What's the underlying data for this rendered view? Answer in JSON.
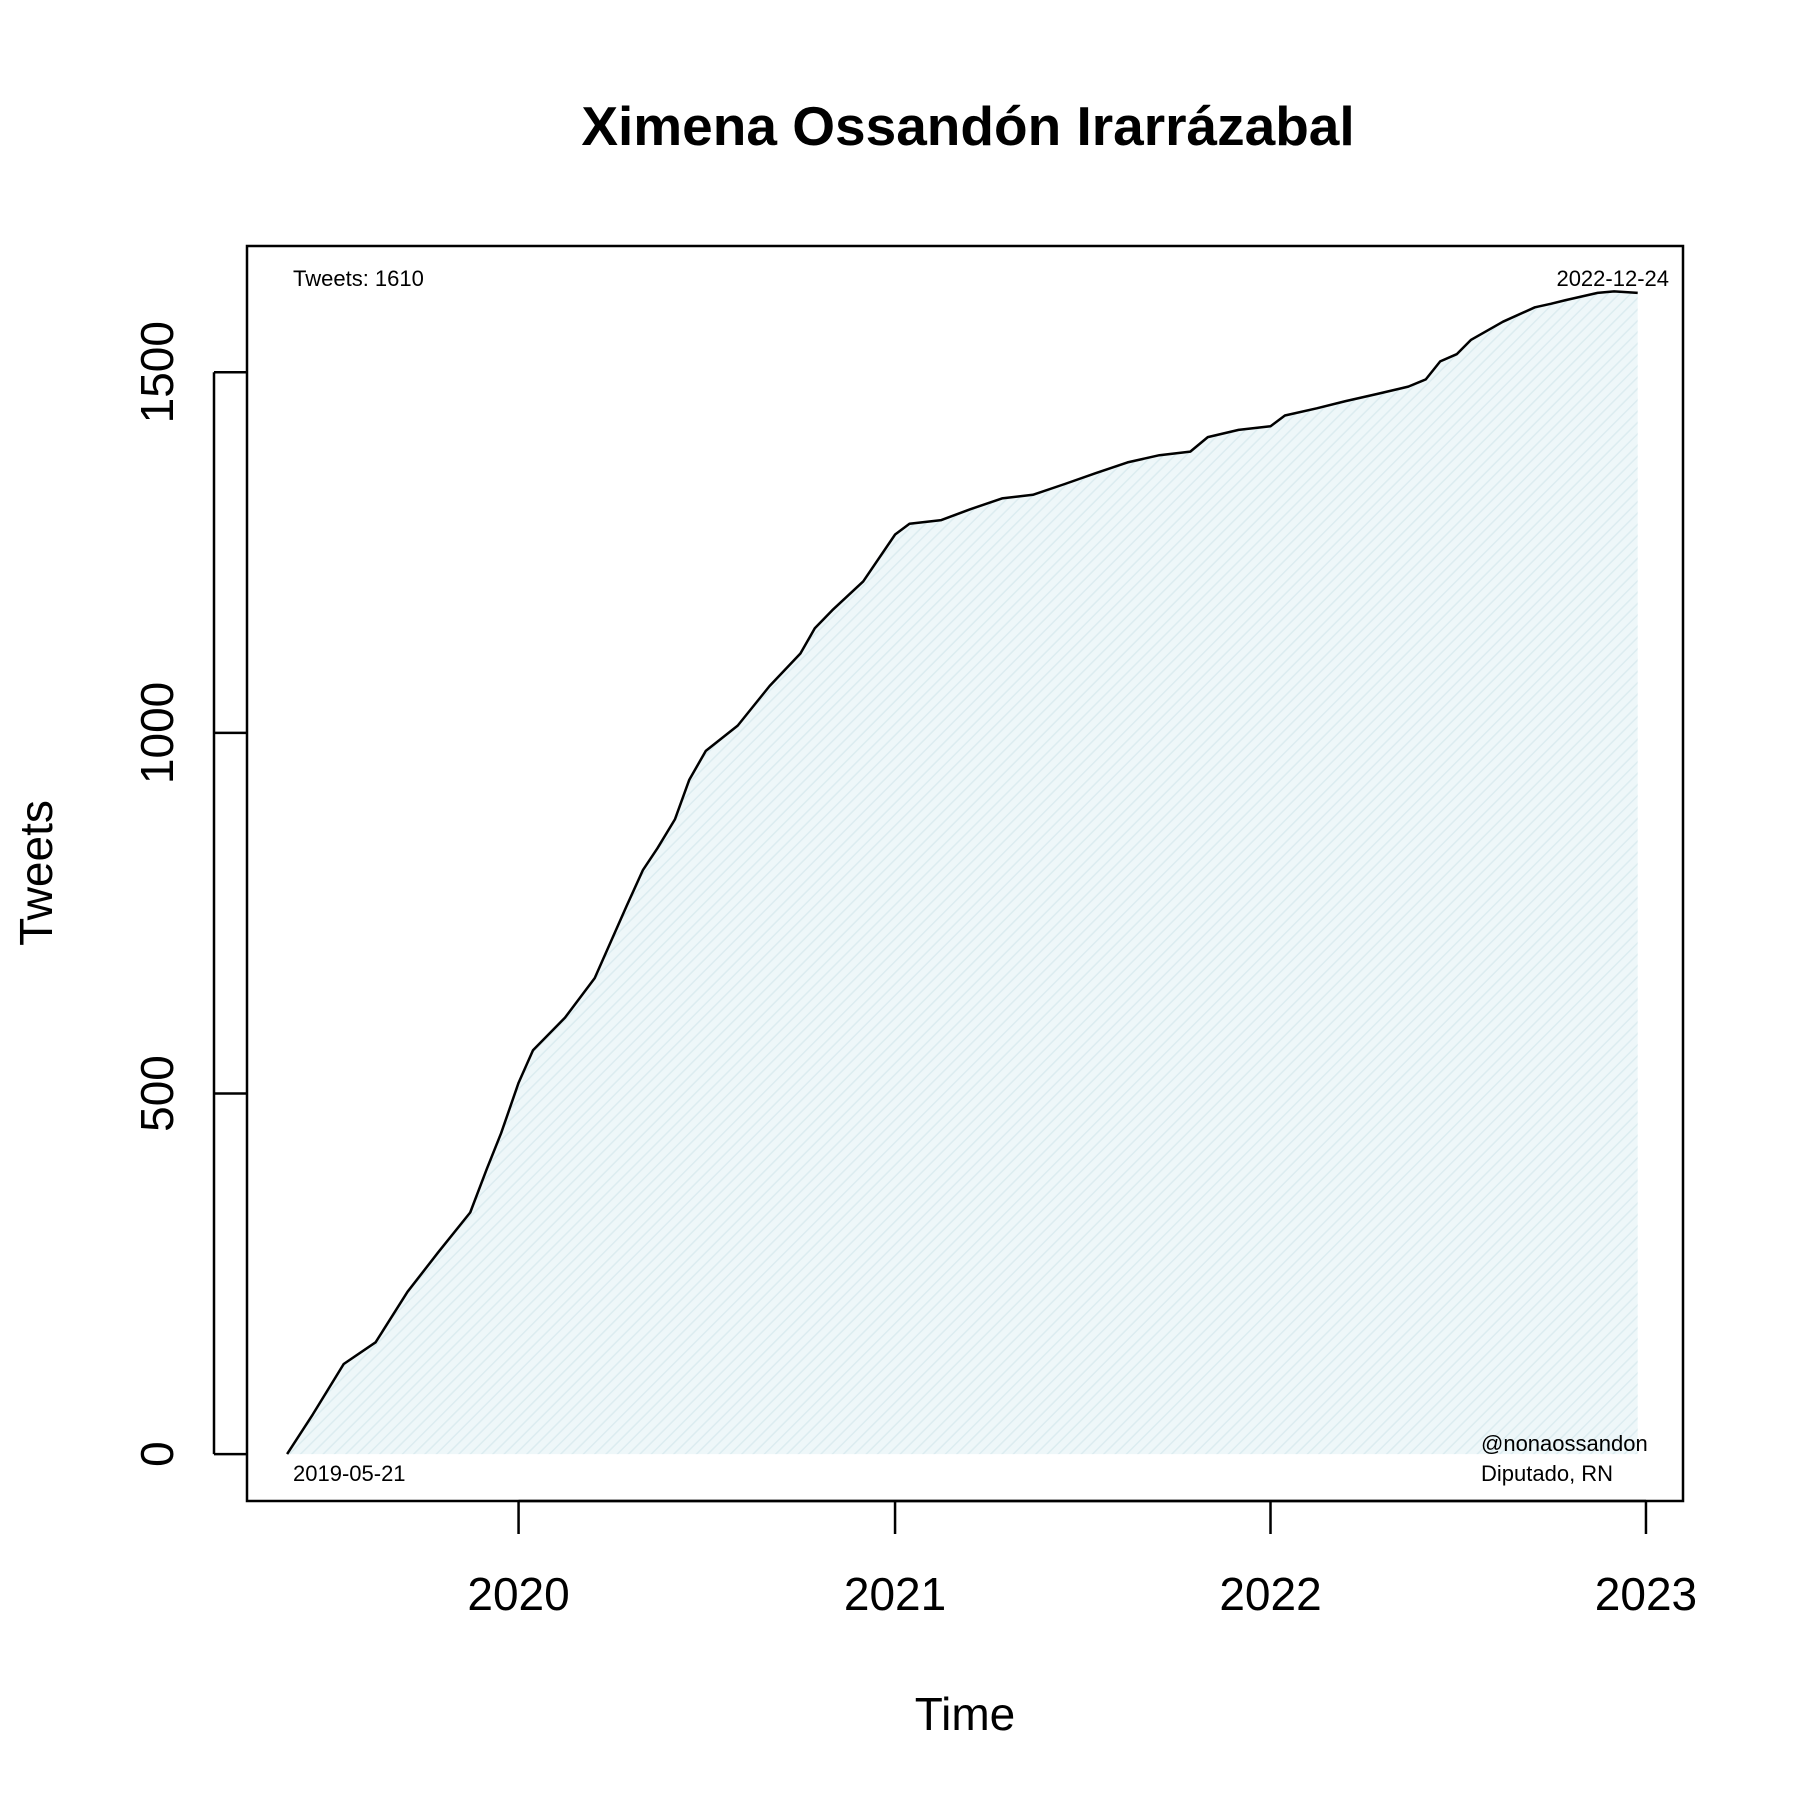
{
  "chart_data": {
    "type": "area",
    "title": "Ximena Ossandón Irarrázabal",
    "xlabel": "Time",
    "ylabel": "Tweets",
    "x_ticks": [
      "2020",
      "2021",
      "2022",
      "2023"
    ],
    "y_ticks": [
      "0",
      "500",
      "1000",
      "1500"
    ],
    "ylim": [
      -65,
      1675
    ],
    "xlim": [
      "2019-04-12",
      "2023-02-06"
    ],
    "grid": false,
    "fill_color": "#e6f3f5",
    "line_color": "#000000",
    "annotations": {
      "top_left": "Tweets: 1610",
      "top_right": "2022-12-24",
      "bottom_left": "2019-05-21",
      "bottom_right_handle": "@nonaossandon",
      "bottom_right_role": "Diputado, RN"
    },
    "series": [
      {
        "x": [
          "2019-05-21",
          "2019-06-15",
          "2019-07-15",
          "2019-08-15",
          "2019-09-15",
          "2019-10-15",
          "2019-11-15",
          "2019-12-01",
          "2019-12-15",
          "2020-01-01",
          "2020-01-15",
          "2020-02-15",
          "2020-03-15",
          "2020-04-15",
          "2020-05-01",
          "2020-05-15",
          "2020-06-01",
          "2020-06-15",
          "2020-07-01",
          "2020-08-01",
          "2020-09-01",
          "2020-10-01",
          "2020-10-15",
          "2020-11-01",
          "2020-12-01",
          "2021-01-01",
          "2021-01-15",
          "2021-02-15",
          "2021-03-15",
          "2021-04-15",
          "2021-05-15",
          "2021-06-15",
          "2021-07-15",
          "2021-08-15",
          "2021-09-15",
          "2021-10-15",
          "2021-11-01",
          "2021-12-01",
          "2022-01-01",
          "2022-01-15",
          "2022-02-15",
          "2022-03-15",
          "2022-04-15",
          "2022-05-15",
          "2022-06-01",
          "2022-06-15",
          "2022-07-01",
          "2022-07-15",
          "2022-08-15",
          "2022-09-15",
          "2022-10-01",
          "2022-10-15",
          "2022-11-15",
          "2022-12-01",
          "2022-12-24"
        ],
        "y": [
          0,
          55,
          125,
          155,
          225,
          280,
          335,
          395,
          445,
          515,
          560,
          605,
          660,
          760,
          810,
          840,
          880,
          935,
          975,
          1010,
          1065,
          1110,
          1145,
          1170,
          1210,
          1275,
          1290,
          1295,
          1310,
          1325,
          1330,
          1345,
          1360,
          1375,
          1385,
          1390,
          1410,
          1420,
          1425,
          1440,
          1450,
          1460,
          1470,
          1480,
          1490,
          1515,
          1525,
          1545,
          1570,
          1590,
          1595,
          1600,
          1610,
          1612,
          1610
        ]
      }
    ]
  }
}
